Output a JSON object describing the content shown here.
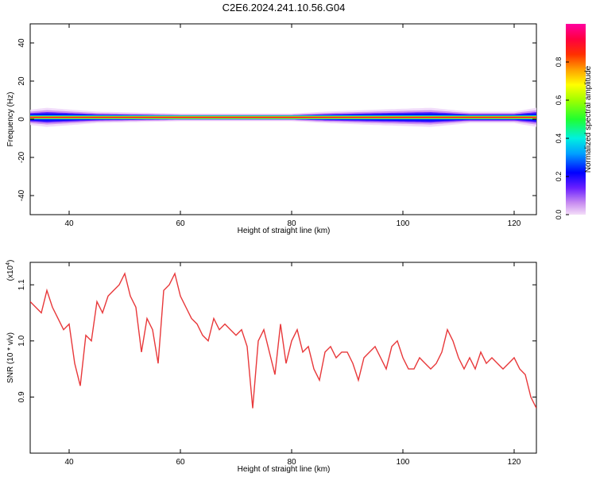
{
  "title": "C2E6.2024.241.10.56.G04",
  "chart_data": [
    {
      "type": "heatmap",
      "xlabel": "Height of straight line (km)",
      "ylabel": "Frequency (Hz)",
      "xlim": [
        33,
        124
      ],
      "ylim": [
        -50,
        50
      ],
      "xticks": [
        40,
        60,
        80,
        100,
        120
      ],
      "yticks": [
        40,
        20,
        0,
        -20,
        -40
      ],
      "colorbar": {
        "label": "Normalized spectral amplitude",
        "range": [
          0,
          1
        ],
        "ticks": [
          "0.0",
          "0.2",
          "0.4",
          "0.6",
          "0.8"
        ]
      },
      "band": {
        "center_hz": 1,
        "core_halfwidth_hz": 1,
        "envelope": [
          {
            "x": 33,
            "halfwidth_hz": 4
          },
          {
            "x": 36,
            "halfwidth_hz": 5
          },
          {
            "x": 45,
            "halfwidth_hz": 3
          },
          {
            "x": 60,
            "halfwidth_hz": 2
          },
          {
            "x": 80,
            "halfwidth_hz": 2
          },
          {
            "x": 86,
            "halfwidth_hz": 3
          },
          {
            "x": 95,
            "halfwidth_hz": 4
          },
          {
            "x": 105,
            "halfwidth_hz": 5
          },
          {
            "x": 112,
            "halfwidth_hz": 3
          },
          {
            "x": 120,
            "halfwidth_hz": 3
          },
          {
            "x": 124,
            "halfwidth_hz": 5
          }
        ]
      }
    },
    {
      "type": "line",
      "xlabel": "Height of straight line (km)",
      "ylabel": "SNR (10 * v/v)",
      "y_multiplier": "(x10",
      "y_multiplier_exp": "4",
      "xlim": [
        33,
        124
      ],
      "ylim": [
        0.8,
        1.14
      ],
      "xticks": [
        40,
        60,
        80,
        100,
        120
      ],
      "yticks": [
        "0.9",
        "1.0",
        "1.1"
      ],
      "series": [
        {
          "color": "#e8383a",
          "x": [
            33,
            34,
            35,
            36,
            37,
            38,
            39,
            40,
            41,
            42,
            43,
            44,
            45,
            46,
            47,
            48,
            49,
            50,
            51,
            52,
            53,
            54,
            55,
            56,
            57,
            58,
            59,
            60,
            61,
            62,
            63,
            64,
            65,
            66,
            67,
            68,
            69,
            70,
            71,
            72,
            73,
            74,
            75,
            76,
            77,
            78,
            79,
            80,
            81,
            82,
            83,
            84,
            85,
            86,
            87,
            88,
            89,
            90,
            91,
            92,
            93,
            94,
            95,
            96,
            97,
            98,
            99,
            100,
            101,
            102,
            103,
            104,
            105,
            106,
            107,
            108,
            109,
            110,
            111,
            112,
            113,
            114,
            115,
            116,
            117,
            118,
            119,
            120,
            121,
            122,
            123,
            124
          ],
          "y": [
            1.07,
            1.06,
            1.05,
            1.09,
            1.06,
            1.04,
            1.02,
            1.03,
            0.96,
            0.92,
            1.01,
            1.0,
            1.07,
            1.05,
            1.08,
            1.09,
            1.1,
            1.12,
            1.08,
            1.06,
            0.98,
            1.04,
            1.02,
            0.96,
            1.09,
            1.1,
            1.12,
            1.08,
            1.06,
            1.04,
            1.03,
            1.01,
            1.0,
            1.04,
            1.02,
            1.03,
            1.02,
            1.01,
            1.02,
            0.99,
            0.88,
            1.0,
            1.02,
            0.98,
            0.94,
            1.03,
            0.96,
            1.0,
            1.02,
            0.98,
            0.99,
            0.95,
            0.93,
            0.98,
            0.99,
            0.97,
            0.98,
            0.98,
            0.96,
            0.93,
            0.97,
            0.98,
            0.99,
            0.97,
            0.95,
            0.99,
            1.0,
            0.97,
            0.95,
            0.95,
            0.97,
            0.96,
            0.95,
            0.96,
            0.98,
            1.02,
            1.0,
            0.97,
            0.95,
            0.97,
            0.95,
            0.98,
            0.96,
            0.97,
            0.96,
            0.95,
            0.96,
            0.97,
            0.95,
            0.94,
            0.9,
            0.88
          ]
        }
      ]
    }
  ]
}
